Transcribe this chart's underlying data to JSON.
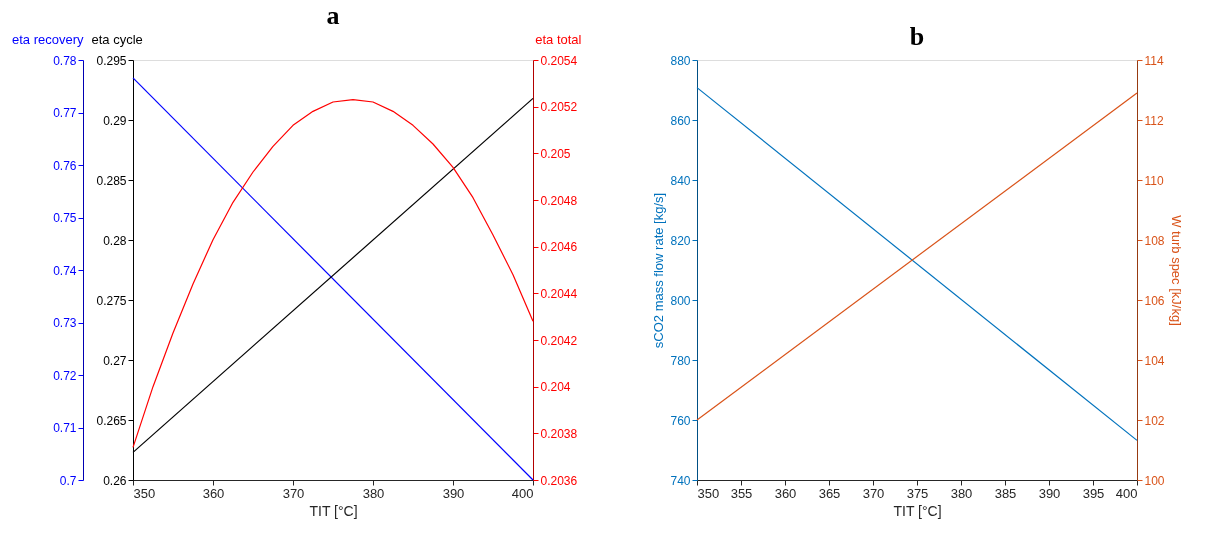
{
  "chart_data": [
    {
      "type": "line",
      "title": "a",
      "xlabel": "TIT [°C]",
      "ylabel": "eta cycle",
      "y2label": "eta total",
      "y3label": "eta recovery",
      "xlim": [
        350,
        400
      ],
      "xticks": [
        350,
        360,
        370,
        380,
        390,
        400
      ],
      "ylim": [
        0.26,
        0.295
      ],
      "yticks": [
        0.26,
        0.265,
        0.27,
        0.275,
        0.28,
        0.285,
        0.29,
        0.295
      ],
      "y2lim": [
        0.2036,
        0.2054
      ],
      "y2ticks": [
        0.2036,
        0.2038,
        0.204,
        0.2042,
        0.2044,
        0.2046,
        0.2048,
        0.205,
        0.2052,
        0.2054
      ],
      "y3lim": [
        0.7,
        0.78
      ],
      "y3ticks": [
        0.7,
        0.71,
        0.72,
        0.73,
        0.74,
        0.75,
        0.76,
        0.77,
        0.78
      ],
      "grid": false,
      "marker": "none",
      "line_style": "solid",
      "series": [
        {
          "axis": "y3",
          "color": "#0000ff",
          "x": [
            350,
            400
          ],
          "values": [
            0.7766,
            0.7
          ]
        },
        {
          "axis": "y",
          "color": "#000000",
          "x": [
            350,
            400
          ],
          "values": [
            0.2623,
            0.2918
          ]
        },
        {
          "axis": "y2",
          "color": "#ff0000",
          "x": [
            350,
            352.5,
            355,
            357.5,
            360,
            362.5,
            365,
            367.5,
            370,
            372.5,
            375,
            377.5,
            380,
            382.5,
            385,
            387.5,
            390,
            392.5,
            395,
            397.5,
            400
          ],
          "values": [
            0.20374,
            0.204,
            0.20423,
            0.20444,
            0.20463,
            0.20479,
            0.20492,
            0.20503,
            0.20512,
            0.20518,
            0.20522,
            0.20523,
            0.20522,
            0.20518,
            0.20512,
            0.20504,
            0.20494,
            0.20481,
            0.20465,
            0.20448,
            0.20428
          ]
        }
      ]
    },
    {
      "type": "line",
      "title": "b",
      "xlabel": "TIT [°C]",
      "ylabel": "sCO2 mass flow rate [kg/s]",
      "y2label": "W turb spec [kJ/kg]",
      "xlim": [
        350,
        400
      ],
      "xticks": [
        350,
        355,
        360,
        365,
        370,
        375,
        380,
        385,
        390,
        395,
        400
      ],
      "ylim": [
        740,
        880
      ],
      "yticks": [
        740,
        760,
        780,
        800,
        820,
        840,
        860,
        880
      ],
      "y2lim": [
        100,
        114
      ],
      "y2ticks": [
        100,
        102,
        104,
        106,
        108,
        110,
        112,
        114
      ],
      "grid": false,
      "marker": "none",
      "line_style": "solid",
      "series": [
        {
          "axis": "y",
          "color": "#0072bd",
          "x": [
            350,
            400
          ],
          "values": [
            870.8,
            753.2
          ]
        },
        {
          "axis": "y2",
          "color": "#d95319",
          "x": [
            350,
            400
          ],
          "values": [
            102.0,
            112.9
          ]
        }
      ]
    }
  ]
}
